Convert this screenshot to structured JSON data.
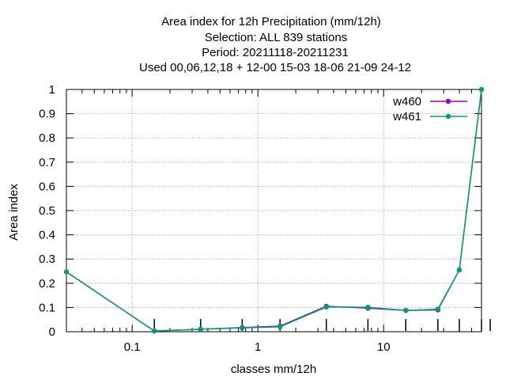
{
  "chart_data": {
    "type": "line",
    "title_lines": [
      "Area index  for 12h Precipitation (mm/12h)",
      "Selection: ALL    839 stations",
      "Period: 20211118-20211231",
      "Used  00,06,12,18  + 12-00 15-03 18-06 21-09 24-12"
    ],
    "xlabel": "classes mm/12h",
    "ylabel": "Area index",
    "x_scale": "log",
    "xlim": [
      0.03,
      60
    ],
    "ylim": [
      0,
      1
    ],
    "x_ticks": [
      {
        "value": 0.1,
        "label": "0.1"
      },
      {
        "value": 1,
        "label": "1"
      },
      {
        "value": 10,
        "label": "10"
      }
    ],
    "y_ticks": [
      {
        "value": 0,
        "label": "0"
      },
      {
        "value": 0.1,
        "label": "0.1"
      },
      {
        "value": 0.2,
        "label": "0.2"
      },
      {
        "value": 0.3,
        "label": "0.3"
      },
      {
        "value": 0.4,
        "label": "0.4"
      },
      {
        "value": 0.5,
        "label": "0.5"
      },
      {
        "value": 0.6,
        "label": "0.6"
      },
      {
        "value": 0.7,
        "label": "0.7"
      },
      {
        "value": 0.8,
        "label": "0.8"
      },
      {
        "value": 0.9,
        "label": "0.9"
      },
      {
        "value": 1,
        "label": "1"
      }
    ],
    "grid": true,
    "legend_position": "top-right",
    "series": [
      {
        "name": "w460",
        "color": "#9400d3",
        "x": [
          0.03,
          0.15,
          0.35,
          0.75,
          1.5,
          3.5,
          7.5,
          15,
          27,
          40,
          60
        ],
        "y": [
          0.247,
          0.003,
          0.01,
          0.017,
          0.023,
          0.105,
          0.097,
          0.088,
          0.09,
          0.255,
          1.0
        ]
      },
      {
        "name": "w461",
        "color": "#009e73",
        "x": [
          0.03,
          0.15,
          0.35,
          0.75,
          1.5,
          3.5,
          7.5,
          15,
          27,
          40,
          60
        ],
        "y": [
          0.247,
          0.003,
          0.01,
          0.016,
          0.02,
          0.102,
          0.101,
          0.088,
          0.093,
          0.255,
          1.0
        ]
      }
    ]
  }
}
